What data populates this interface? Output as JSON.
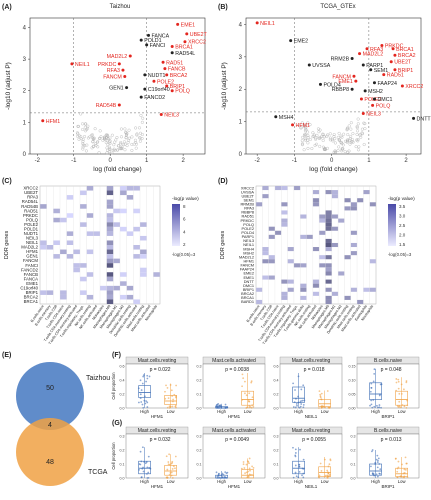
{
  "panels": {
    "A": {
      "letter": "(A)",
      "title": "Taizhou"
    },
    "B": {
      "letter": "(B)",
      "title": "TCGA_GTEx"
    },
    "C": {
      "letter": "(C)"
    },
    "D": {
      "letter": "(D)"
    },
    "E": {
      "letter": "(E)"
    },
    "F": {
      "letter": "(F)"
    },
    "G": {
      "letter": "(G)"
    }
  },
  "colors": {
    "up": "#e3261f",
    "down": "#e3261f",
    "neutral": "#222222",
    "grey": "#b0b0b0",
    "venn_top": "#4f7fc4",
    "venn_bottom": "#f0a144",
    "box_high": "#3d6db5",
    "box_low": "#f0a144"
  },
  "chart_data": [
    {
      "type": "scatter",
      "name_ref": "A",
      "title": "Taizhou",
      "xlabel": "log (fold change)",
      "ylabel": "-log10 (adjust P)",
      "xlim": [
        -2.2,
        2.6
      ],
      "ylim": [
        0,
        4.3
      ],
      "xticks": [
        -2,
        -1,
        0,
        1,
        2
      ],
      "yticks": [
        0,
        1,
        2,
        3,
        4
      ],
      "thresholds": {
        "x": [
          -1,
          1
        ],
        "y": 1.3
      },
      "labeled_points": [
        {
          "label": "EME1",
          "x": 1.85,
          "y": 4.1,
          "color": "red"
        },
        {
          "label": "UBE2T",
          "x": 2.1,
          "y": 3.8,
          "color": "red"
        },
        {
          "label": "FANCA",
          "x": 1.05,
          "y": 3.75,
          "color": "black"
        },
        {
          "label": "POLD1",
          "x": 0.85,
          "y": 3.6,
          "color": "black"
        },
        {
          "label": "XRCC2",
          "x": 2.05,
          "y": 3.55,
          "color": "red"
        },
        {
          "label": "FANCI",
          "x": 1.0,
          "y": 3.45,
          "color": "black"
        },
        {
          "label": "BRCA1",
          "x": 1.7,
          "y": 3.4,
          "color": "red"
        },
        {
          "label": "RAD54L",
          "x": 1.7,
          "y": 3.2,
          "color": "black"
        },
        {
          "label": "MAD2L2",
          "x": 0.55,
          "y": 3.1,
          "color": "red"
        },
        {
          "label": "PRKDC",
          "x": 0.25,
          "y": 2.85,
          "color": "red"
        },
        {
          "label": "RAD51",
          "x": 1.45,
          "y": 2.9,
          "color": "red"
        },
        {
          "label": "RFA3",
          "x": 0.35,
          "y": 2.65,
          "color": "red"
        },
        {
          "label": "FANCB",
          "x": 1.5,
          "y": 2.7,
          "color": "red"
        },
        {
          "label": "FANCM",
          "x": 0.4,
          "y": 2.45,
          "color": "red"
        },
        {
          "label": "NUDT1",
          "x": 0.95,
          "y": 2.5,
          "color": "black"
        },
        {
          "label": "BRCA2",
          "x": 1.55,
          "y": 2.5,
          "color": "red"
        },
        {
          "label": "POLE2",
          "x": 1.2,
          "y": 2.3,
          "color": "red"
        },
        {
          "label": "GEN1",
          "x": 0.45,
          "y": 2.1,
          "color": "black"
        },
        {
          "label": "C19orf40",
          "x": 0.95,
          "y": 2.05,
          "color": "black"
        },
        {
          "label": "BRIP1",
          "x": 1.55,
          "y": 2.15,
          "color": "red"
        },
        {
          "label": "POLQ",
          "x": 1.7,
          "y": 2.0,
          "color": "red"
        },
        {
          "label": "FANCD2",
          "x": 0.85,
          "y": 1.8,
          "color": "black"
        },
        {
          "label": "RAD54B",
          "x": 0.25,
          "y": 1.55,
          "color": "red"
        },
        {
          "label": "NEIL3",
          "x": 1.4,
          "y": 1.25,
          "color": "red"
        },
        {
          "label": "NEIL1",
          "x": -1.05,
          "y": 2.85,
          "color": "red"
        },
        {
          "label": "HFM1",
          "x": -1.85,
          "y": 1.05,
          "color": "red"
        }
      ]
    },
    {
      "type": "scatter",
      "name_ref": "B",
      "title": "TCGA_GTEx",
      "xlabel": "log (fold change)",
      "ylabel": "-log10 (adjust P)",
      "xlim": [
        -2.3,
        2.4
      ],
      "ylim": [
        0,
        4.2
      ],
      "xticks": [
        -2,
        -1,
        0,
        1,
        2
      ],
      "yticks": [
        0,
        1,
        2,
        3,
        4
      ],
      "labeled_points": [
        {
          "label": "NEIL1",
          "x": -2.0,
          "y": 4.05,
          "color": "red"
        },
        {
          "label": "EME2",
          "x": -1.1,
          "y": 3.5,
          "color": "black"
        },
        {
          "label": "PRKDC",
          "x": 1.35,
          "y": 3.35,
          "color": "red"
        },
        {
          "label": "RFA3",
          "x": 0.95,
          "y": 3.25,
          "color": "red"
        },
        {
          "label": "BRCA1",
          "x": 1.65,
          "y": 3.25,
          "color": "red"
        },
        {
          "label": "MAD2L2",
          "x": 0.75,
          "y": 3.1,
          "color": "red"
        },
        {
          "label": "BRCA2",
          "x": 1.7,
          "y": 3.05,
          "color": "red"
        },
        {
          "label": "RRM2B",
          "x": 0.55,
          "y": 2.95,
          "color": "black"
        },
        {
          "label": "UBE2T",
          "x": 1.6,
          "y": 2.85,
          "color": "red"
        },
        {
          "label": "UVSSA",
          "x": -0.6,
          "y": 2.75,
          "color": "black"
        },
        {
          "label": "PARP1",
          "x": 0.85,
          "y": 2.75,
          "color": "black"
        },
        {
          "label": "SEM1",
          "x": 1.05,
          "y": 2.6,
          "color": "black"
        },
        {
          "label": "BRIP1",
          "x": 1.7,
          "y": 2.6,
          "color": "red"
        },
        {
          "label": "RAD51",
          "x": 1.4,
          "y": 2.45,
          "color": "red"
        },
        {
          "label": "FANCM",
          "x": 0.6,
          "y": 2.4,
          "color": "red"
        },
        {
          "label": "EME1",
          "x": 0.65,
          "y": 2.25,
          "color": "red"
        },
        {
          "label": "FAAP24",
          "x": 1.15,
          "y": 2.2,
          "color": "black"
        },
        {
          "label": "POLD4",
          "x": -0.3,
          "y": 2.15,
          "color": "black"
        },
        {
          "label": "XRCC2",
          "x": 1.9,
          "y": 2.1,
          "color": "red"
        },
        {
          "label": "RBBP8",
          "x": 0.55,
          "y": 2.0,
          "color": "black"
        },
        {
          "label": "MSH2",
          "x": 0.9,
          "y": 1.95,
          "color": "black"
        },
        {
          "label": "POLE2",
          "x": 0.8,
          "y": 1.7,
          "color": "red"
        },
        {
          "label": "DMC1",
          "x": 1.15,
          "y": 1.7,
          "color": "black"
        },
        {
          "label": "POLQ",
          "x": 1.1,
          "y": 1.5,
          "color": "red"
        },
        {
          "label": "NEIL3",
          "x": 0.85,
          "y": 1.25,
          "color": "red"
        },
        {
          "label": "MSH4",
          "x": -1.5,
          "y": 1.15,
          "color": "black"
        },
        {
          "label": "HFM1",
          "x": -1.05,
          "y": 0.9,
          "color": "red"
        },
        {
          "label": "DNTT",
          "x": 2.2,
          "y": 1.1,
          "color": "black"
        }
      ]
    },
    {
      "type": "heatmap",
      "name_ref": "C",
      "ylabel": "DDR genes",
      "legend_title": "-log(p value)",
      "legend_ticks": [
        "8",
        "6",
        "4",
        "2"
      ],
      "legend_note": "-log(0.05)=3",
      "rows": [
        "XRCC2",
        "UBE2T",
        "RPA3",
        "RAD54L",
        "RAD54B",
        "RAD51",
        "PRKDC",
        "POLQ",
        "POLE2",
        "POLD1",
        "NUDT1",
        "NEIL3",
        "NEIL1",
        "MAD2L2",
        "HFM1",
        "GEN1",
        "FANCM",
        "FANCI",
        "FANCD2",
        "FANCB",
        "FANCA",
        "EME1",
        "C19orf40",
        "BRIP1",
        "BRCA2",
        "BRCA1"
      ],
      "columns": [
        "B.cells.naive",
        "B.cells.memory",
        "T.cells.CD8",
        "T.cells.CD4.naive",
        "T.cells.CD4.memory.resting",
        "T.cells.CD4.memory.activated",
        "T.cells.regulatory..Tregs.",
        "NK.cells.resting",
        "NK.cells.activated",
        "Monocytes",
        "Macrophages.M0",
        "Macrophages.M1",
        "Macrophages.M2",
        "Dendritic.cells.resting",
        "Dendritic.cells.activated",
        "Mast.cells.resting",
        "Mast.cells.activated",
        "Neutrophils"
      ]
    },
    {
      "type": "heatmap",
      "name_ref": "D",
      "ylabel": "DDR genes",
      "legend_title": "-log(p value)",
      "legend_ticks": [
        "3.5",
        "3.0",
        "2.5",
        "2.0",
        "1.5"
      ],
      "legend_note": "-log(0.05)=3",
      "rows": [
        "XRCC2",
        "UVSSA",
        "UBE2T",
        "SEM1",
        "RRM2B",
        "RPA3",
        "RBBP8",
        "RAD51",
        "PRKDC",
        "POLQ",
        "POLE2",
        "POLD4",
        "PARP1",
        "NEIL3",
        "NEIL1",
        "MSH4",
        "MSH2",
        "MAD2L2",
        "HFM1",
        "FANCM",
        "FAAP24",
        "EME2",
        "EME1",
        "DNTT",
        "DMC1",
        "BRIP1",
        "BRCA2",
        "BRCA1",
        "BARD1"
      ],
      "columns": [
        "B.cells.naive",
        "B.cells.memory",
        "T.cells.CD8",
        "T.cells.CD4.naive",
        "T.cells.CD4.memory.resting",
        "T.cells.CD4.memory.activated",
        "T.cells.regulatory..Tregs.",
        "T.cells.gamma.delta",
        "NK.cells.resting",
        "NK.cells.activated",
        "Monocytes",
        "Macrophages.M0",
        "Macrophages.M1",
        "Macrophages.M2",
        "Dendritic.cells.resting",
        "Mast.cells.resting",
        "Mast.cells.activated",
        "Eosinophils",
        "Neutrophils"
      ]
    },
    {
      "type": "venn",
      "name_ref": "E",
      "sets": [
        {
          "name": "Taizhou",
          "only": 50
        },
        {
          "name": "TCGA",
          "only": 48
        }
      ],
      "intersection": 4
    },
    {
      "type": "box",
      "name_ref": "F",
      "ylabel": "Cell proportion",
      "categories": [
        "High",
        "Low"
      ],
      "plots": [
        {
          "title": "Mast.cells.resting",
          "gene": "HFM1",
          "p": "p = 0.022",
          "ylim": [
            0,
            0.6
          ],
          "yticks": [
            "0.0",
            "0.2",
            "0.4",
            "0.6"
          ],
          "high": {
            "q1": 0.15,
            "median": 0.22,
            "q3": 0.32,
            "min": 0.0,
            "max": 0.5
          },
          "low": {
            "q1": 0.05,
            "median": 0.1,
            "q3": 0.18,
            "min": 0.0,
            "max": 0.35
          }
        },
        {
          "title": "Mast.cells.activated",
          "gene": "HFM1",
          "p": "p = 0.0038",
          "ylim": [
            0,
            0.3
          ],
          "yticks": [
            "0.0",
            "0.1",
            "0.2",
            "0.3"
          ],
          "high": {
            "q1": 0.0,
            "median": 0.0,
            "q3": 0.01,
            "min": 0.0,
            "max": 0.03
          },
          "low": {
            "q1": 0.02,
            "median": 0.06,
            "q3": 0.12,
            "min": 0.0,
            "max": 0.25
          }
        },
        {
          "title": "Mast.cells.resting",
          "gene": "NEIL1",
          "p": "p = 0.018",
          "ylim": [
            0,
            0.6
          ],
          "yticks": [
            "0.0",
            "0.2",
            "0.4",
            "0.6"
          ],
          "high": {
            "q1": 0.08,
            "median": 0.14,
            "q3": 0.3,
            "min": 0.0,
            "max": 0.5
          },
          "low": {
            "q1": 0.02,
            "median": 0.06,
            "q3": 0.12,
            "min": 0.0,
            "max": 0.25
          }
        },
        {
          "title": "B.cells.naive",
          "gene": "BRIP1",
          "p": "p = 0.048",
          "ylim": [
            0,
            0.15
          ],
          "yticks": [
            "0.00",
            "0.05",
            "0.10",
            "0.15"
          ],
          "high": {
            "q1": 0.03,
            "median": 0.05,
            "q3": 0.09,
            "min": 0.0,
            "max": 0.14
          },
          "low": {
            "q1": 0.01,
            "median": 0.03,
            "q3": 0.06,
            "min": 0.0,
            "max": 0.11
          }
        }
      ]
    },
    {
      "type": "box",
      "name_ref": "G",
      "ylabel": "Cell proportion",
      "categories": [
        "High",
        "Low"
      ],
      "plots": [
        {
          "title": "Mast.cells.resting",
          "gene": "HFM1",
          "p": "p = 0.032",
          "ylim": [
            0,
            0.3
          ],
          "yticks": [
            "0.0",
            "0.1",
            "0.2",
            "0.3"
          ],
          "high": {
            "q1": 0.03,
            "median": 0.07,
            "q3": 0.12,
            "min": 0.0,
            "max": 0.22
          },
          "low": {
            "q1": 0.02,
            "median": 0.05,
            "q3": 0.09,
            "min": 0.0,
            "max": 0.17
          }
        },
        {
          "title": "Mast.cells.activated",
          "gene": "HFM1",
          "p": "p = 0.0049",
          "ylim": [
            0,
            0.3
          ],
          "yticks": [
            "0.0",
            "0.1",
            "0.2",
            "0.3"
          ],
          "high": {
            "q1": 0.0,
            "median": 0.0,
            "q3": 0.02,
            "min": 0.0,
            "max": 0.05
          },
          "low": {
            "q1": 0.0,
            "median": 0.02,
            "q3": 0.06,
            "min": 0.0,
            "max": 0.14
          }
        },
        {
          "title": "Mast.cells.resting",
          "gene": "NEIL1",
          "p": "p = 0.0055",
          "ylim": [
            0,
            0.3
          ],
          "yticks": [
            "0.0",
            "0.1",
            "0.2",
            "0.3"
          ],
          "high": {
            "q1": 0.03,
            "median": 0.07,
            "q3": 0.12,
            "min": 0.0,
            "max": 0.22
          },
          "low": {
            "q1": 0.01,
            "median": 0.04,
            "q3": 0.08,
            "min": 0.0,
            "max": 0.15
          }
        },
        {
          "title": "B.cells.naive",
          "gene": "BRIP1",
          "p": "p = 0.013",
          "ylim": [
            0,
            0.3
          ],
          "yticks": [
            "0.0",
            "0.1",
            "0.2",
            "0.3"
          ],
          "high": {
            "q1": 0.02,
            "median": 0.05,
            "q3": 0.1,
            "min": 0.0,
            "max": 0.2
          },
          "low": {
            "q1": 0.01,
            "median": 0.03,
            "q3": 0.07,
            "min": 0.0,
            "max": 0.15
          }
        }
      ]
    }
  ]
}
